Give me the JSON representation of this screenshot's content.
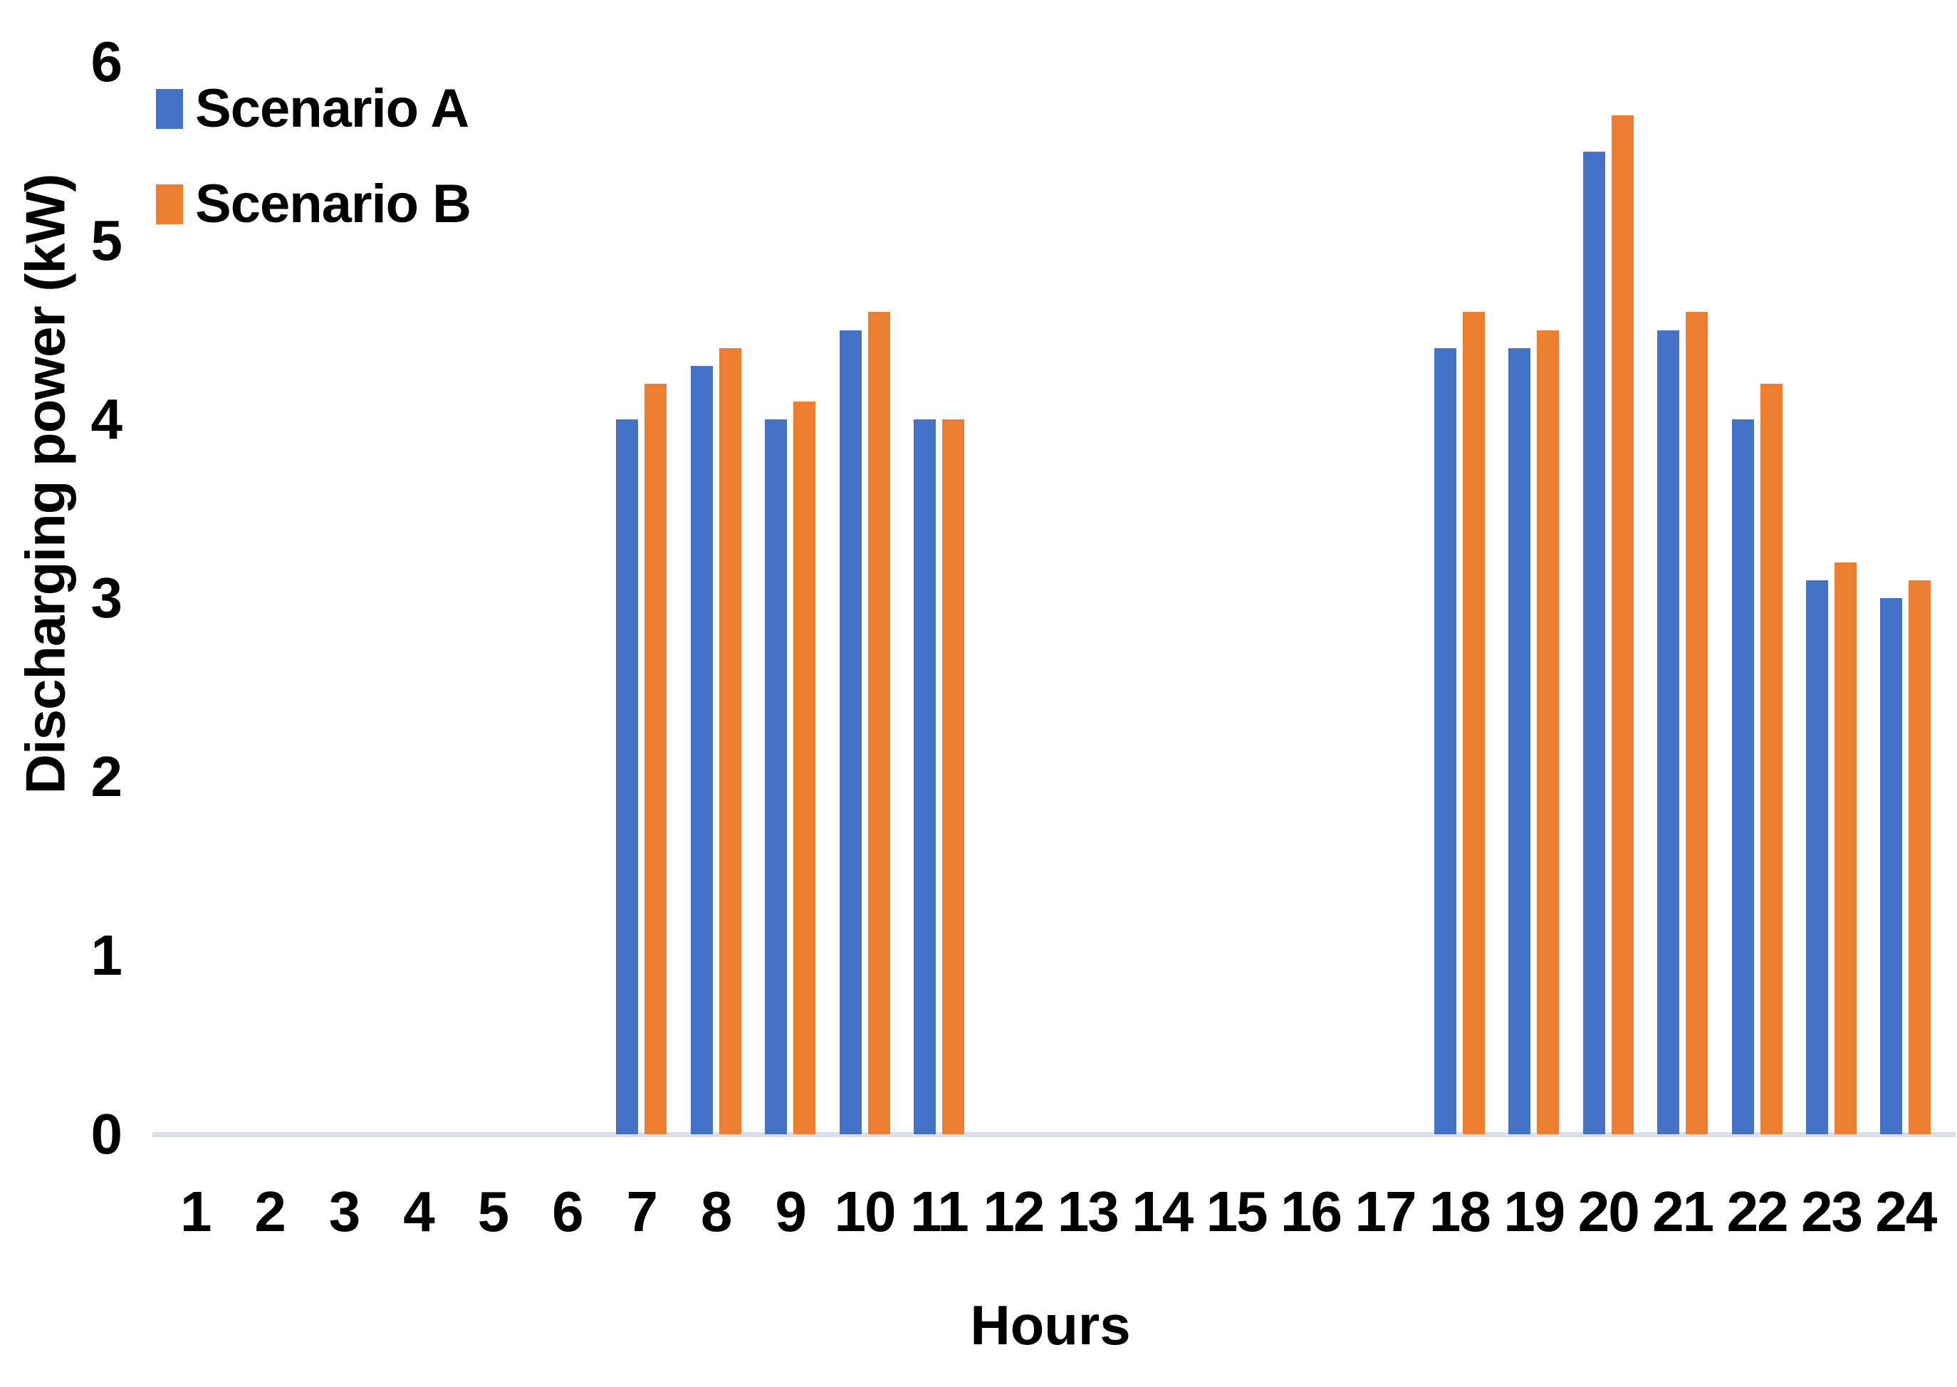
{
  "colors": {
    "scenario_a": "#4472C4",
    "scenario_b": "#ED7D31",
    "axis_line": "#dbdfe6"
  },
  "chart_data": {
    "type": "bar",
    "title": "",
    "xlabel": "Hours",
    "ylabel": "Discharging power (kW)",
    "categories": [
      1,
      2,
      3,
      4,
      5,
      6,
      7,
      8,
      9,
      10,
      11,
      12,
      13,
      14,
      15,
      16,
      17,
      18,
      19,
      20,
      21,
      22,
      23,
      24
    ],
    "series": [
      {
        "name": "Scenario A",
        "color": "#4472C4",
        "values": [
          0,
          0,
          0,
          0,
          0,
          0,
          4.0,
          4.3,
          4.0,
          4.5,
          4.0,
          0,
          0,
          0,
          0,
          0,
          0,
          4.4,
          4.4,
          5.5,
          4.5,
          4.0,
          3.1,
          3.0
        ]
      },
      {
        "name": "Scenario B",
        "color": "#ED7D31",
        "values": [
          0,
          0,
          0,
          0,
          0,
          0,
          4.2,
          4.4,
          4.1,
          4.6,
          4.0,
          0,
          0,
          0,
          0,
          0,
          0,
          4.6,
          4.5,
          5.7,
          4.6,
          4.2,
          3.2,
          3.1
        ]
      }
    ],
    "ylim": [
      0,
      6
    ],
    "yticks": [
      0,
      1,
      2,
      3,
      4,
      5,
      6
    ],
    "grid": false,
    "legend_position": "top-left"
  }
}
